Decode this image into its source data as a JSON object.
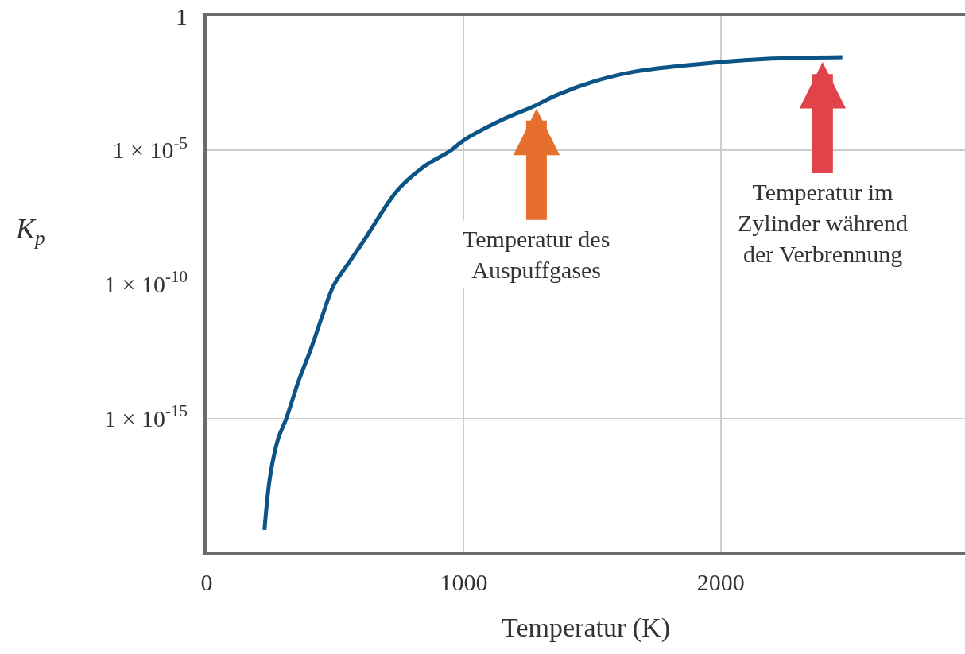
{
  "chart_data": {
    "type": "line",
    "xlabel": "Temperatur (K)",
    "ylabel": "K$_{p}$",
    "x": [
      225,
      247,
      278,
      309,
      358,
      405,
      448,
      495,
      556,
      618,
      742,
      845,
      948,
      1000,
      1154,
      1278,
      1360,
      1515,
      1669,
      2000,
      2185,
      2473
    ],
    "series": [
      {
        "color": "#0d5486",
        "values": [
          6.8e-20,
          6.9e-18,
          1.7e-16,
          9.3e-16,
          2.5e-14,
          3.7e-13,
          5.8e-12,
          9.3e-11,
          6.8e-10,
          5.2e-09,
          3.1e-07,
          2.4e-06,
          9.3e-06,
          2.3e-05,
          0.00014,
          0.00045,
          0.0011,
          0.0038,
          0.0085,
          0.019,
          0.025,
          0.029
        ]
      }
    ],
    "xlim": [
      0,
      2950
    ],
    "ylim": [
      1e-20,
      1
    ],
    "xticks": [
      0,
      1000,
      2000
    ],
    "yticks": [
      1,
      {
        "value": 1e-05,
        "label": "1 × 10$^{-5}$"
      },
      {
        "value": 1e-10,
        "label": "1 × 10$^{-10}$"
      },
      {
        "value": 1e-15,
        "label": "1 × 10$^{-15}$"
      }
    ],
    "log": "y",
    "grid": true,
    "marker": "none",
    "line_style": "solid",
    "annotations": [
      {
        "text": "Temperatur des\nAuspuffgases",
        "x": 1283,
        "y": 0.00035
      },
      {
        "text": "Temperatur im\nZylinder während\nder Verbrennung",
        "x": 2396,
        "y": 0.019
      }
    ]
  }
}
